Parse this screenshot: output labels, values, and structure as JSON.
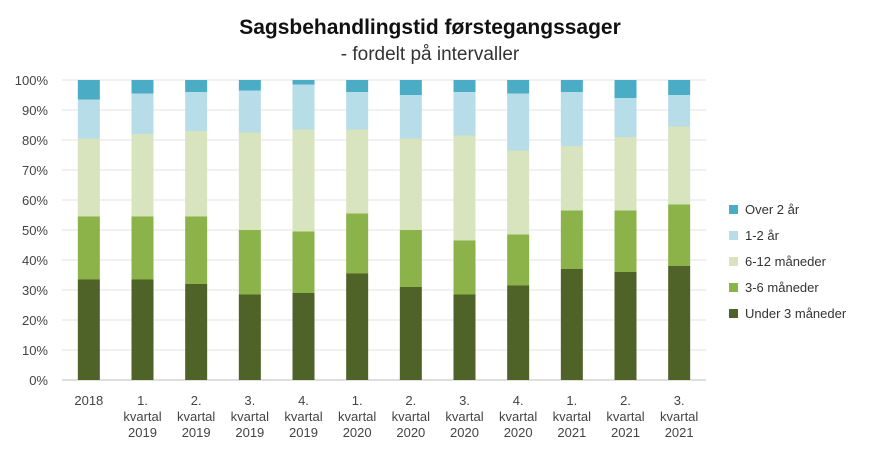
{
  "chart_data": {
    "type": "bar",
    "stacked": true,
    "percent": true,
    "title": "Sagsbehandlingstid førstegangssager",
    "subtitle": "- fordelt på intervaller",
    "xlabel": "",
    "ylabel": "",
    "ylim": [
      0,
      100
    ],
    "yticks": [
      "0%",
      "10%",
      "20%",
      "30%",
      "40%",
      "50%",
      "60%",
      "70%",
      "80%",
      "90%",
      "100%"
    ],
    "legend_position": "right",
    "categories": [
      [
        "2018"
      ],
      [
        "1.",
        "kvartal",
        "2019"
      ],
      [
        "2.",
        "kvartal",
        "2019"
      ],
      [
        "3.",
        "kvartal",
        "2019"
      ],
      [
        "4.",
        "kvartal",
        "2019"
      ],
      [
        "1.",
        "kvartal",
        "2020"
      ],
      [
        "2.",
        "kvartal",
        "2020"
      ],
      [
        "3.",
        "kvartal",
        "2020"
      ],
      [
        "4.",
        "kvartal",
        "2020"
      ],
      [
        "1.",
        "kvartal",
        "2021"
      ],
      [
        "2.",
        "kvartal",
        "2021"
      ],
      [
        "3.",
        "kvartal",
        "2021"
      ]
    ],
    "series": [
      {
        "name": "Under 3 måneder",
        "color": "#4f6228",
        "values": [
          33.5,
          33.5,
          32,
          28.5,
          29,
          35.5,
          31,
          28.5,
          31.5,
          37,
          36,
          38
        ]
      },
      {
        "name": "3-6 måneder",
        "color": "#8bb34a",
        "values": [
          21,
          21,
          22.5,
          21.5,
          20.5,
          20,
          19,
          18,
          17,
          19.5,
          20.5,
          20.5
        ]
      },
      {
        "name": "6-12 måneder",
        "color": "#d7e4bd",
        "values": [
          26,
          27.5,
          28.5,
          32.5,
          34,
          28,
          30.5,
          35,
          28,
          21.5,
          24.5,
          26
        ]
      },
      {
        "name": "1-2 år",
        "color": "#b7dde8",
        "values": [
          13,
          13.5,
          13,
          14,
          15,
          12.5,
          14.5,
          14.5,
          19,
          18,
          13,
          10.5
        ]
      },
      {
        "name": "Over 2 år",
        "color": "#4bacc6",
        "values": [
          6.5,
          4.5,
          4,
          3.5,
          1.5,
          4,
          5,
          4,
          4.5,
          4,
          6,
          5
        ]
      }
    ]
  }
}
